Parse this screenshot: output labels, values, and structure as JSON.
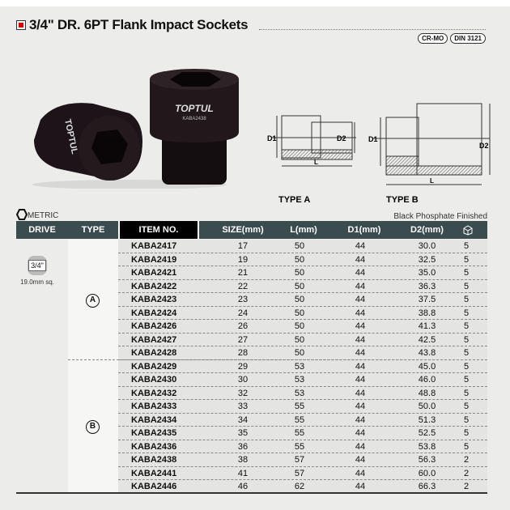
{
  "title": "3/4\" DR. 6PT Flank Impact Sockets",
  "badges": [
    "CR-MO",
    "DIN 3121"
  ],
  "photo": {
    "brand": "TOPTUL",
    "item": "KABA2438"
  },
  "diagrams": {
    "type_a": "TYPE A",
    "type_b": "TYPE B",
    "d1": "D1",
    "d2": "D2",
    "l": "L"
  },
  "metric_label": "METRIC",
  "finish_label": "Black Phosphate Finished",
  "headers": {
    "drive": "DRIVE",
    "type": "TYPE",
    "item": "ITEM NO.",
    "size": "SIZE(mm)",
    "l": "L(mm)",
    "d1": "D1(mm)",
    "d2": "D2(mm)",
    "qty_icon": "box-icon"
  },
  "drive": {
    "size": "3/4\"",
    "sq": "19.0mm sq."
  },
  "types": {
    "a": "A",
    "b": "B"
  },
  "rows": [
    [
      "KABA2417",
      "17",
      "50",
      "44",
      "30.0",
      "5"
    ],
    [
      "KABA2419",
      "19",
      "50",
      "44",
      "32.5",
      "5"
    ],
    [
      "KABA2421",
      "21",
      "50",
      "44",
      "35.0",
      "5"
    ],
    [
      "KABA2422",
      "22",
      "50",
      "44",
      "36.3",
      "5"
    ],
    [
      "KABA2423",
      "23",
      "50",
      "44",
      "37.5",
      "5"
    ],
    [
      "KABA2424",
      "24",
      "50",
      "44",
      "38.8",
      "5"
    ],
    [
      "KABA2426",
      "26",
      "50",
      "44",
      "41.3",
      "5"
    ],
    [
      "KABA2427",
      "27",
      "50",
      "44",
      "42.5",
      "5"
    ],
    [
      "KABA2428",
      "28",
      "50",
      "44",
      "43.8",
      "5"
    ],
    [
      "KABA2429",
      "29",
      "53",
      "44",
      "45.0",
      "5"
    ],
    [
      "KABA2430",
      "30",
      "53",
      "44",
      "46.0",
      "5"
    ],
    [
      "KABA2432",
      "32",
      "53",
      "44",
      "48.8",
      "5"
    ],
    [
      "KABA2433",
      "33",
      "55",
      "44",
      "50.0",
      "5"
    ],
    [
      "KABA2434",
      "34",
      "55",
      "44",
      "51.3",
      "5"
    ],
    [
      "KABA2435",
      "35",
      "55",
      "44",
      "52.5",
      "5"
    ],
    [
      "KABA2436",
      "36",
      "55",
      "44",
      "53.8",
      "5"
    ],
    [
      "KABA2438",
      "38",
      "57",
      "44",
      "56.3",
      "2"
    ],
    [
      "KABA2441",
      "41",
      "57",
      "44",
      "60.0",
      "2"
    ],
    [
      "KABA2446",
      "46",
      "62",
      "44",
      "66.3",
      "2"
    ]
  ]
}
